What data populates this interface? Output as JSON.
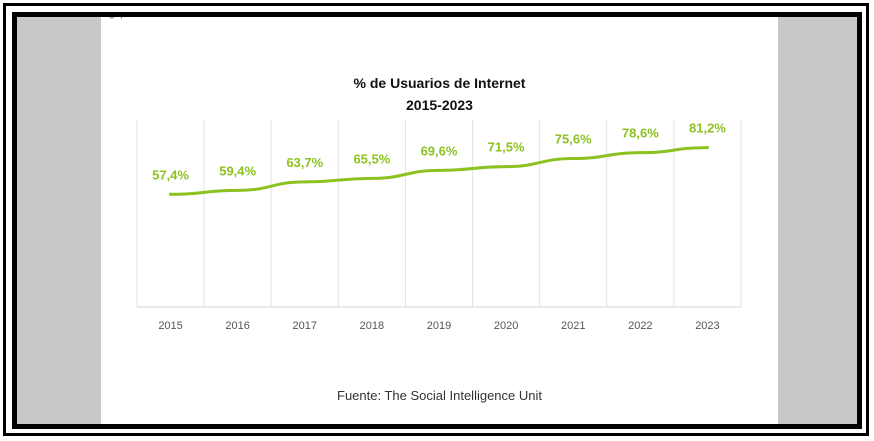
{
  "fragment_text": "g          p",
  "chart_data": {
    "type": "line",
    "title": "% de Usuarios de Internet",
    "subtitle": "2015-2023",
    "categories": [
      "2015",
      "2016",
      "2017",
      "2018",
      "2019",
      "2020",
      "2021",
      "2022",
      "2023"
    ],
    "values": [
      57.4,
      59.4,
      63.7,
      65.5,
      69.6,
      71.5,
      75.6,
      78.6,
      81.2
    ],
    "data_labels": [
      "57,4%",
      "59,4%",
      "63,7%",
      "65,5%",
      "69,6%",
      "71,5%",
      "75,6%",
      "78,6%",
      "81,2%"
    ],
    "xlabel": "",
    "ylabel": "",
    "ylim": [
      0,
      100
    ],
    "grid": "vertical",
    "line_color": "#8cc21f",
    "label_color": "#8cc21f"
  },
  "source": "Fuente: The Social Intelligence Unit"
}
